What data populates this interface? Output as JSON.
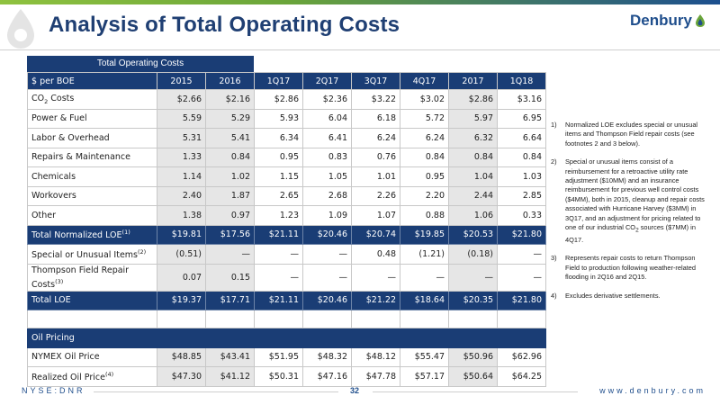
{
  "header": {
    "title": "Analysis of Total Operating Costs",
    "logo_text": "Denbury"
  },
  "table": {
    "caption": "Total Operating Costs",
    "corner_label": "$ per BOE",
    "columns": [
      "2015",
      "2016",
      "1Q17",
      "2Q17",
      "3Q17",
      "4Q17",
      "2017",
      "1Q18"
    ],
    "rows": {
      "co2": {
        "label": "CO",
        "label_sub": "2",
        "label_suffix": " Costs",
        "values": [
          "$2.66",
          "$2.16",
          "$2.86",
          "$2.36",
          "$3.22",
          "$3.02",
          "$2.86",
          "$3.16"
        ]
      },
      "power": {
        "label": "Power & Fuel",
        "values": [
          "5.59",
          "5.29",
          "5.93",
          "6.04",
          "6.18",
          "5.72",
          "5.97",
          "6.95"
        ]
      },
      "labor": {
        "label": "Labor & Overhead",
        "values": [
          "5.31",
          "5.41",
          "6.34",
          "6.41",
          "6.24",
          "6.24",
          "6.32",
          "6.64"
        ]
      },
      "repairs": {
        "label": "Repairs & Maintenance",
        "values": [
          "1.33",
          "0.84",
          "0.95",
          "0.83",
          "0.76",
          "0.84",
          "0.84",
          "0.84"
        ]
      },
      "chemicals": {
        "label": "Chemicals",
        "values": [
          "1.14",
          "1.02",
          "1.15",
          "1.05",
          "1.01",
          "0.95",
          "1.04",
          "1.03"
        ]
      },
      "workovers": {
        "label": "Workovers",
        "values": [
          "2.40",
          "1.87",
          "2.65",
          "2.68",
          "2.26",
          "2.20",
          "2.44",
          "2.85"
        ]
      },
      "other": {
        "label": "Other",
        "values": [
          "1.38",
          "0.97",
          "1.23",
          "1.09",
          "1.07",
          "0.88",
          "1.06",
          "0.33"
        ]
      },
      "normalized": {
        "label": "Total Normalized LOE",
        "label_sup": "(1)",
        "values": [
          "$19.81",
          "$17.56",
          "$21.11",
          "$20.46",
          "$20.74",
          "$19.85",
          "$20.53",
          "$21.80"
        ]
      },
      "special": {
        "label": "Special or Unusual Items",
        "label_sup": "(2)",
        "values": [
          "(0.51)",
          "—",
          "—",
          "—",
          "0.48",
          "(1.21)",
          "(0.18)",
          "—"
        ]
      },
      "thompson": {
        "label": "Thompson Field Repair Costs",
        "label_sup": "(3)",
        "values": [
          "0.07",
          "0.15",
          "—",
          "—",
          "—",
          "—",
          "—",
          "—"
        ]
      },
      "total": {
        "label": "Total LOE",
        "values": [
          "$19.37",
          "$17.71",
          "$21.11",
          "$20.46",
          "$21.22",
          "$18.64",
          "$20.35",
          "$21.80"
        ]
      }
    },
    "oil_section": "Oil Pricing",
    "oil_rows": {
      "nymex": {
        "label": "NYMEX Oil Price",
        "values": [
          "$48.85",
          "$43.41",
          "$51.95",
          "$48.32",
          "$48.12",
          "$55.47",
          "$50.96",
          "$62.96"
        ]
      },
      "realized": {
        "label": "Realized Oil Price",
        "label_sup": "(4)",
        "values": [
          "$47.30",
          "$41.12",
          "$50.31",
          "$47.16",
          "$47.78",
          "$57.17",
          "$50.64",
          "$64.25"
        ]
      }
    }
  },
  "notes": [
    {
      "num": "1)",
      "text": "Normalized LOE excludes special or unusual items and Thompson Field repair costs (see footnotes 2 and 3 below)."
    },
    {
      "num": "2)",
      "text": "Special or unusual items consist of a reimbursement for a retroactive utility rate adjustment ($10MM) and an insurance reimbursement for previous well control costs ($4MM), both in 2015, cleanup and repair costs associated with Hurricane Harvey ($3MM) in 3Q17, and an adjustment for pricing related to one of our industrial CO",
      "sub": "2",
      "tail": " sources ($7MM) in 4Q17."
    },
    {
      "num": "3)",
      "text": "Represents repair costs to return Thompson Field to production following weather-related flooding in 2Q16 and 2Q15."
    },
    {
      "num": "4)",
      "text": "Excludes derivative settlements."
    }
  ],
  "footer": {
    "left": "NYSE:DNR",
    "page": "32",
    "right": "www.denbury.com"
  },
  "colors": {
    "navy": "#1a3d75",
    "title_blue": "#1f3f73",
    "shade": "#e6e6e6",
    "accent_green": "#8fc23f"
  }
}
